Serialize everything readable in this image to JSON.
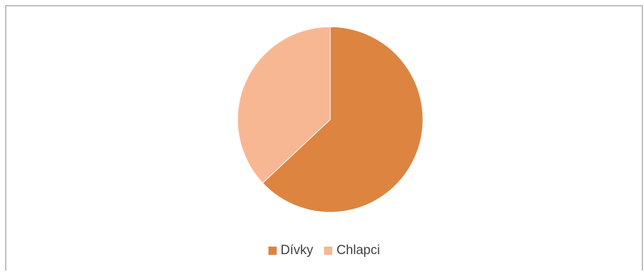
{
  "chart_data": {
    "type": "pie",
    "title": "",
    "categories": [
      "Dívky",
      "Chlapci"
    ],
    "values": [
      63,
      37
    ],
    "colors": [
      "#dd8440",
      "#f8b793"
    ],
    "start_angle_deg": 0,
    "direction": "clockwise",
    "legend_position": "bottom"
  }
}
